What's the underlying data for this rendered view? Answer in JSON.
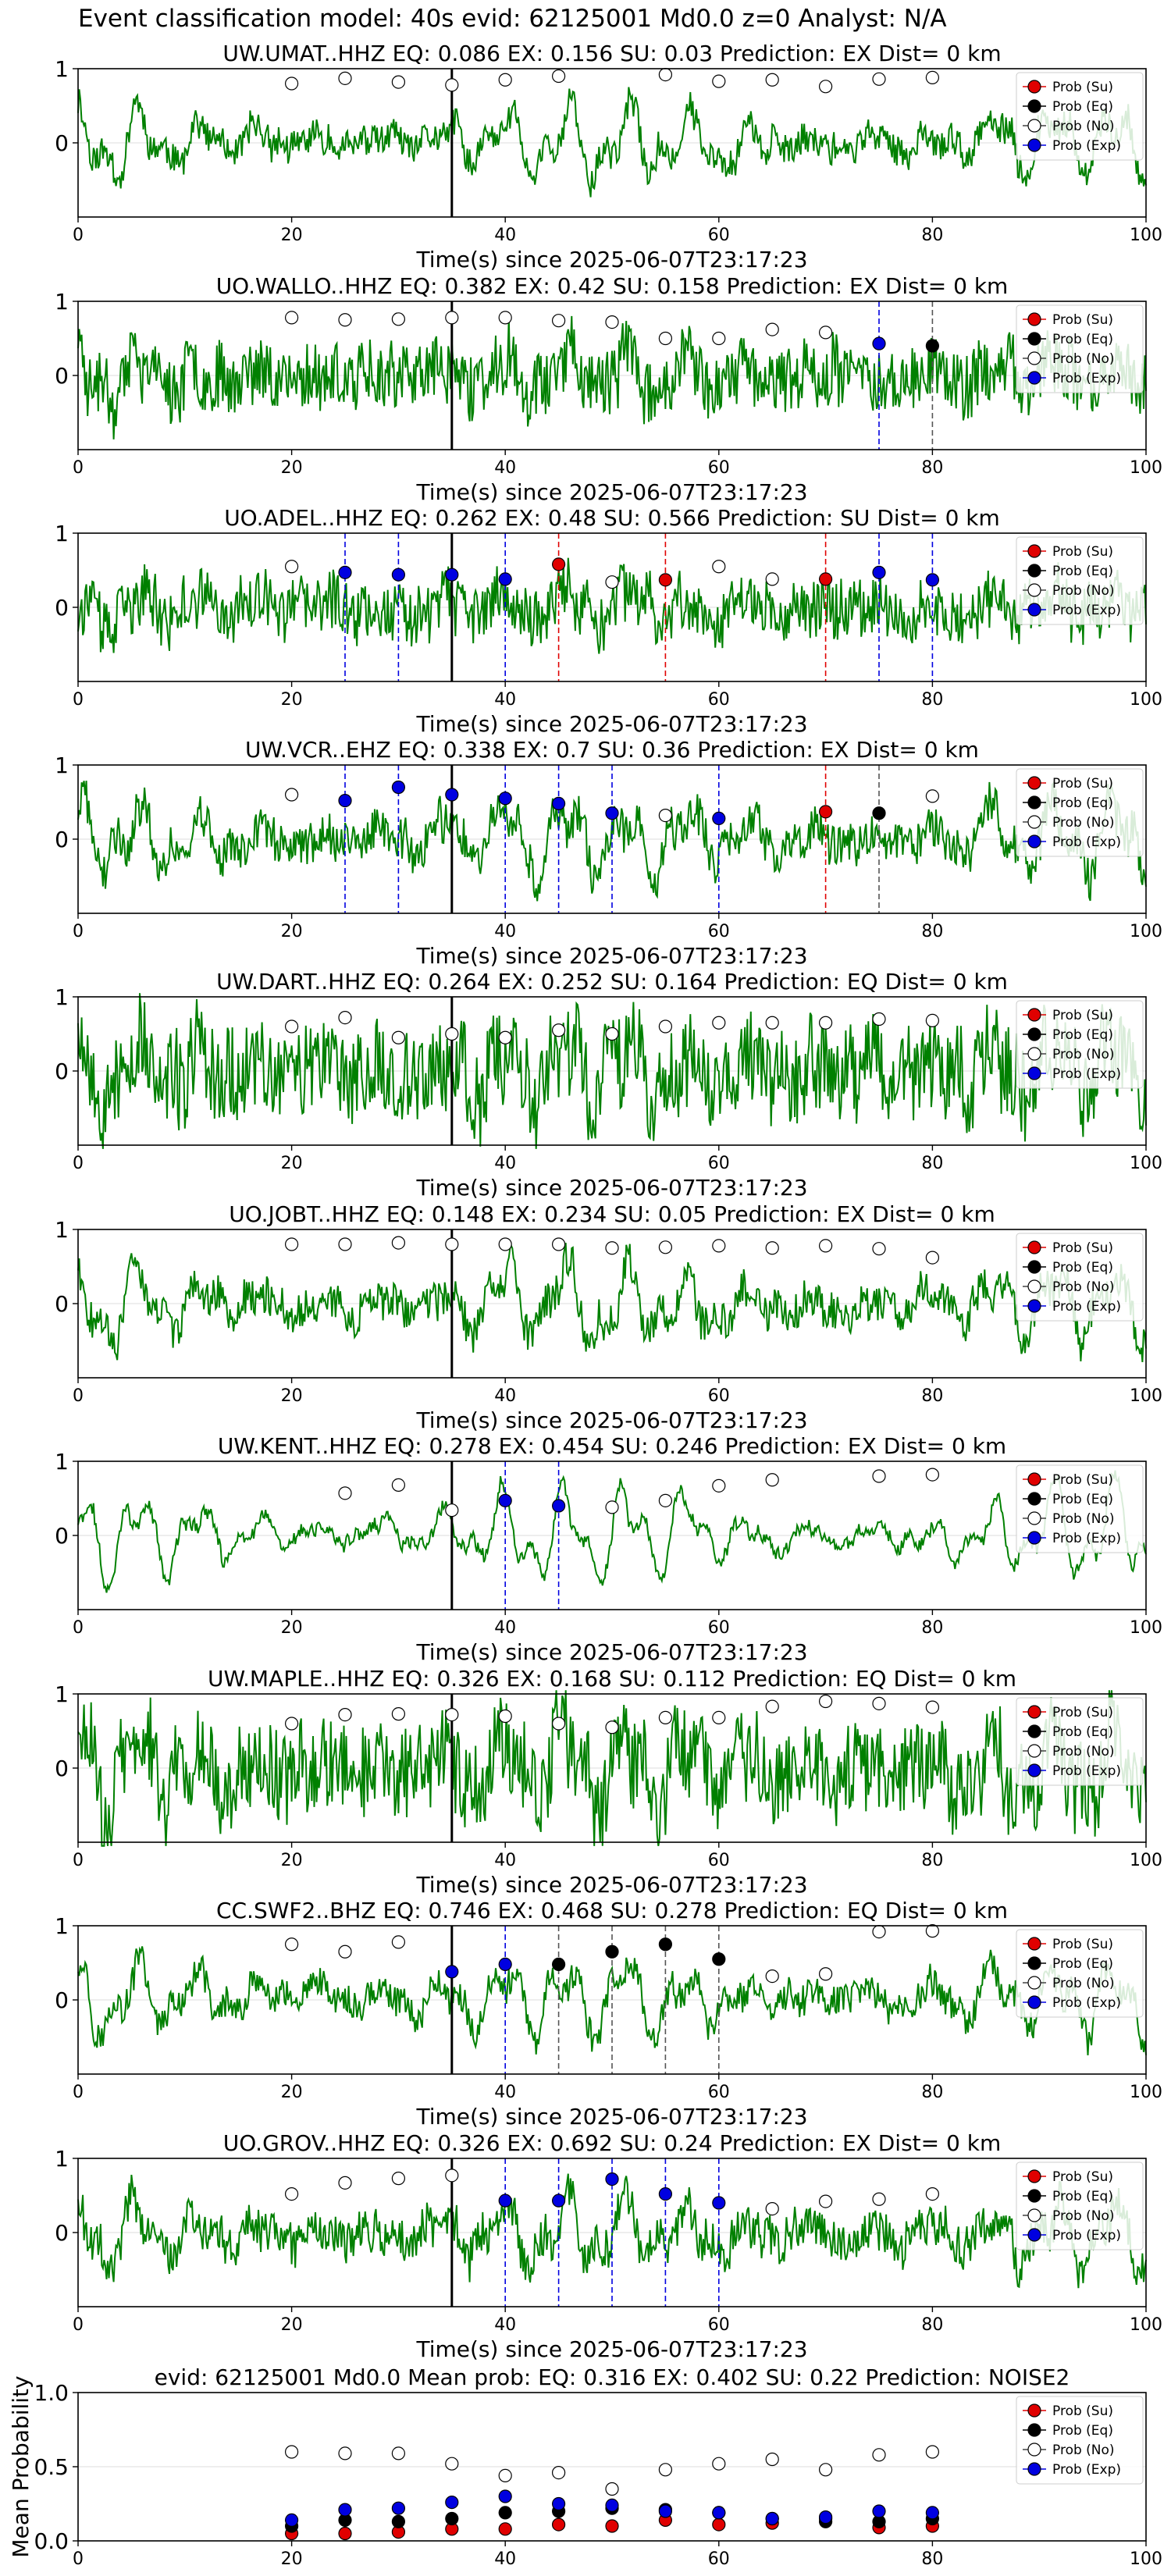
{
  "figure_title": "Event classification model: 40s evid: 62125001 Md0.0 z=0 Analyst: N/A",
  "colors": {
    "trace": "#008000",
    "su": "#e00000",
    "eq": "#000000",
    "no": "#ffffff",
    "exp": "#0000e0",
    "pick_line": "#000000"
  },
  "legend_labels": [
    "Prob (Su)",
    "Prob (Eq)",
    "Prob (No)",
    "Prob (Exp)"
  ],
  "chart_data": [
    {
      "type": "line",
      "trace_kind": "waveform",
      "title": "UW.UMAT..HHZ   EQ: 0.086  EX: 0.156  SU: 0.03   Prediction: EX    Dist= 0 km",
      "xlabel": "Time(s) since 2025-06-07T23:17:23",
      "xlim": [
        0,
        100
      ],
      "ylim": [
        -1,
        1
      ],
      "xticks": [
        0,
        20,
        40,
        60,
        80,
        100
      ],
      "yticks": [
        0,
        1
      ],
      "grid": true,
      "pick_time": 35,
      "legend_position": "upper right",
      "probability_markers": [
        {
          "time": 20,
          "no": 0.8
        },
        {
          "time": 25,
          "no": 0.87
        },
        {
          "time": 30,
          "no": 0.82
        },
        {
          "time": 35,
          "no": 0.78
        },
        {
          "time": 40,
          "no": 0.85
        },
        {
          "time": 45,
          "no": 0.9
        },
        {
          "time": 55,
          "no": 0.92
        },
        {
          "time": 60,
          "no": 0.83
        },
        {
          "time": 65,
          "no": 0.85
        },
        {
          "time": 70,
          "no": 0.76
        },
        {
          "time": 75,
          "no": 0.86
        },
        {
          "time": 80,
          "no": 0.88
        }
      ],
      "vertical_lines": []
    },
    {
      "type": "line",
      "trace_kind": "waveform",
      "title": "UO.WALLO..HHZ   EQ: 0.382  EX: 0.42  SU: 0.158   Prediction: EX    Dist= 0 km",
      "xlabel": "Time(s) since 2025-06-07T23:17:23",
      "xlim": [
        0,
        100
      ],
      "ylim": [
        -1,
        1
      ],
      "xticks": [
        0,
        20,
        40,
        60,
        80,
        100
      ],
      "yticks": [
        0,
        1
      ],
      "grid": true,
      "pick_time": 35,
      "legend_position": "upper right",
      "probability_markers": [
        {
          "time": 20,
          "no": 0.78
        },
        {
          "time": 25,
          "no": 0.75
        },
        {
          "time": 30,
          "no": 0.76
        },
        {
          "time": 35,
          "no": 0.78
        },
        {
          "time": 40,
          "no": 0.78
        },
        {
          "time": 45,
          "no": 0.74
        },
        {
          "time": 50,
          "no": 0.72
        },
        {
          "time": 55,
          "no": 0.5
        },
        {
          "time": 60,
          "no": 0.5
        },
        {
          "time": 65,
          "no": 0.62
        },
        {
          "time": 70,
          "no": 0.58
        },
        {
          "time": 75,
          "exp": 0.43
        },
        {
          "time": 80,
          "eq": 0.4
        }
      ],
      "vertical_lines": [
        {
          "time": 75,
          "class": "exp"
        },
        {
          "time": 80,
          "class": "eq"
        }
      ]
    },
    {
      "type": "line",
      "trace_kind": "waveform",
      "title": "UO.ADEL..HHZ   EQ: 0.262  EX: 0.48  SU: 0.566   Prediction: SU    Dist= 0 km",
      "xlabel": "Time(s) since 2025-06-07T23:17:23",
      "xlim": [
        0,
        100
      ],
      "ylim": [
        -1,
        1
      ],
      "xticks": [
        0,
        20,
        40,
        60,
        80,
        100
      ],
      "yticks": [
        0,
        1
      ],
      "grid": true,
      "pick_time": 35,
      "legend_position": "upper right",
      "probability_markers": [
        {
          "time": 20,
          "no": 0.55
        },
        {
          "time": 25,
          "exp": 0.47
        },
        {
          "time": 30,
          "exp": 0.44
        },
        {
          "time": 35,
          "exp": 0.44
        },
        {
          "time": 40,
          "exp": 0.38
        },
        {
          "time": 45,
          "su": 0.58
        },
        {
          "time": 50,
          "no": 0.34
        },
        {
          "time": 55,
          "su": 0.37
        },
        {
          "time": 60,
          "no": 0.55
        },
        {
          "time": 65,
          "no": 0.38
        },
        {
          "time": 70,
          "su": 0.38
        },
        {
          "time": 75,
          "exp": 0.47
        },
        {
          "time": 80,
          "exp": 0.37
        }
      ],
      "vertical_lines": [
        {
          "time": 25,
          "class": "exp"
        },
        {
          "time": 30,
          "class": "exp"
        },
        {
          "time": 40,
          "class": "exp"
        },
        {
          "time": 45,
          "class": "su"
        },
        {
          "time": 55,
          "class": "su"
        },
        {
          "time": 70,
          "class": "su"
        },
        {
          "time": 75,
          "class": "exp"
        },
        {
          "time": 80,
          "class": "exp"
        }
      ]
    },
    {
      "type": "line",
      "trace_kind": "waveform",
      "title": "UW.VCR..EHZ   EQ: 0.338  EX: 0.7  SU: 0.36   Prediction: EX    Dist= 0 km",
      "xlabel": "Time(s) since 2025-06-07T23:17:23",
      "xlim": [
        0,
        100
      ],
      "ylim": [
        -1,
        1
      ],
      "xticks": [
        0,
        20,
        40,
        60,
        80,
        100
      ],
      "yticks": [
        0,
        1
      ],
      "grid": true,
      "pick_time": 35,
      "legend_position": "upper right",
      "probability_markers": [
        {
          "time": 20,
          "no": 0.6
        },
        {
          "time": 25,
          "exp": 0.52
        },
        {
          "time": 30,
          "exp": 0.7
        },
        {
          "time": 35,
          "exp": 0.6
        },
        {
          "time": 40,
          "exp": 0.55
        },
        {
          "time": 45,
          "exp": 0.48
        },
        {
          "time": 50,
          "exp": 0.35
        },
        {
          "time": 55,
          "no": 0.32
        },
        {
          "time": 60,
          "exp": 0.28
        },
        {
          "time": 70,
          "su": 0.37
        },
        {
          "time": 75,
          "eq": 0.35
        },
        {
          "time": 80,
          "no": 0.58
        }
      ],
      "vertical_lines": [
        {
          "time": 25,
          "class": "exp"
        },
        {
          "time": 30,
          "class": "exp"
        },
        {
          "time": 40,
          "class": "exp"
        },
        {
          "time": 45,
          "class": "exp"
        },
        {
          "time": 50,
          "class": "exp"
        },
        {
          "time": 60,
          "class": "exp"
        },
        {
          "time": 70,
          "class": "su"
        },
        {
          "time": 75,
          "class": "eq"
        }
      ]
    },
    {
      "type": "line",
      "trace_kind": "waveform",
      "title": "UW.DART..HHZ   EQ: 0.264  EX: 0.252  SU: 0.164   Prediction: EQ    Dist= 0 km",
      "xlabel": "Time(s) since 2025-06-07T23:17:23",
      "xlim": [
        0,
        100
      ],
      "ylim": [
        -1,
        1
      ],
      "xticks": [
        0,
        20,
        40,
        60,
        80,
        100
      ],
      "yticks": [
        0,
        1
      ],
      "grid": true,
      "pick_time": 35,
      "legend_position": "upper right",
      "probability_markers": [
        {
          "time": 20,
          "no": 0.6
        },
        {
          "time": 25,
          "no": 0.72
        },
        {
          "time": 30,
          "no": 0.45
        },
        {
          "time": 35,
          "no": 0.5
        },
        {
          "time": 40,
          "no": 0.45
        },
        {
          "time": 45,
          "no": 0.55
        },
        {
          "time": 50,
          "no": 0.5
        },
        {
          "time": 55,
          "no": 0.6
        },
        {
          "time": 60,
          "no": 0.65
        },
        {
          "time": 65,
          "no": 0.65
        },
        {
          "time": 70,
          "no": 0.65
        },
        {
          "time": 75,
          "no": 0.7
        },
        {
          "time": 80,
          "no": 0.68
        }
      ],
      "vertical_lines": []
    },
    {
      "type": "line",
      "trace_kind": "waveform",
      "title": "UO.JOBT..HHZ   EQ: 0.148  EX: 0.234  SU: 0.05   Prediction: EX    Dist= 0 km",
      "xlabel": "Time(s) since 2025-06-07T23:17:23",
      "xlim": [
        0,
        100
      ],
      "ylim": [
        -1,
        1
      ],
      "xticks": [
        0,
        20,
        40,
        60,
        80,
        100
      ],
      "yticks": [
        0,
        1
      ],
      "grid": true,
      "pick_time": 35,
      "legend_position": "upper right",
      "probability_markers": [
        {
          "time": 20,
          "no": 0.8
        },
        {
          "time": 25,
          "no": 0.8
        },
        {
          "time": 30,
          "no": 0.82
        },
        {
          "time": 35,
          "no": 0.8
        },
        {
          "time": 40,
          "no": 0.8
        },
        {
          "time": 45,
          "no": 0.8
        },
        {
          "time": 50,
          "no": 0.75
        },
        {
          "time": 55,
          "no": 0.76
        },
        {
          "time": 60,
          "no": 0.78
        },
        {
          "time": 65,
          "no": 0.75
        },
        {
          "time": 70,
          "no": 0.78
        },
        {
          "time": 75,
          "no": 0.74
        },
        {
          "time": 80,
          "no": 0.62
        }
      ],
      "vertical_lines": []
    },
    {
      "type": "line",
      "trace_kind": "waveform",
      "title": "UW.KENT..HHZ   EQ: 0.278  EX: 0.454  SU: 0.246   Prediction: EX    Dist= 0 km",
      "xlabel": "Time(s) since 2025-06-07T23:17:23",
      "xlim": [
        0,
        100
      ],
      "ylim": [
        -1,
        1
      ],
      "xticks": [
        0,
        20,
        40,
        60,
        80,
        100
      ],
      "yticks": [
        0,
        1
      ],
      "grid": true,
      "pick_time": 35,
      "legend_position": "upper right",
      "probability_markers": [
        {
          "time": 25,
          "no": 0.57
        },
        {
          "time": 30,
          "no": 0.68
        },
        {
          "time": 35,
          "no": 0.34
        },
        {
          "time": 40,
          "exp": 0.47
        },
        {
          "time": 45,
          "exp": 0.4
        },
        {
          "time": 50,
          "no": 0.38
        },
        {
          "time": 55,
          "no": 0.47
        },
        {
          "time": 60,
          "no": 0.67
        },
        {
          "time": 65,
          "no": 0.75
        },
        {
          "time": 75,
          "no": 0.8
        },
        {
          "time": 80,
          "no": 0.82
        }
      ],
      "vertical_lines": [
        {
          "time": 40,
          "class": "exp"
        },
        {
          "time": 45,
          "class": "exp"
        }
      ]
    },
    {
      "type": "line",
      "trace_kind": "waveform",
      "title": "UW.MAPLE..HHZ   EQ: 0.326  EX: 0.168  SU: 0.112   Prediction: EQ    Dist= 0 km",
      "xlabel": "Time(s) since 2025-06-07T23:17:23",
      "xlim": [
        0,
        100
      ],
      "ylim": [
        -1,
        1
      ],
      "xticks": [
        0,
        20,
        40,
        60,
        80,
        100
      ],
      "yticks": [
        0,
        1
      ],
      "grid": true,
      "pick_time": 35,
      "legend_position": "upper right",
      "probability_markers": [
        {
          "time": 20,
          "no": 0.6
        },
        {
          "time": 25,
          "no": 0.72
        },
        {
          "time": 30,
          "no": 0.73
        },
        {
          "time": 35,
          "no": 0.72
        },
        {
          "time": 40,
          "no": 0.7
        },
        {
          "time": 45,
          "no": 0.6
        },
        {
          "time": 50,
          "no": 0.55
        },
        {
          "time": 55,
          "no": 0.68
        },
        {
          "time": 60,
          "no": 0.68
        },
        {
          "time": 65,
          "no": 0.83
        },
        {
          "time": 70,
          "no": 0.9
        },
        {
          "time": 75,
          "no": 0.87
        },
        {
          "time": 80,
          "no": 0.82
        }
      ],
      "vertical_lines": []
    },
    {
      "type": "line",
      "trace_kind": "waveform",
      "title": "CC.SWF2..BHZ   EQ: 0.746  EX: 0.468  SU: 0.278   Prediction: EQ    Dist= 0 km",
      "xlabel": "Time(s) since 2025-06-07T23:17:23",
      "xlim": [
        0,
        100
      ],
      "ylim": [
        -1,
        1
      ],
      "xticks": [
        0,
        20,
        40,
        60,
        80,
        100
      ],
      "yticks": [
        0,
        1
      ],
      "grid": true,
      "pick_time": 35,
      "legend_position": "upper right",
      "probability_markers": [
        {
          "time": 20,
          "no": 0.75
        },
        {
          "time": 25,
          "no": 0.65
        },
        {
          "time": 30,
          "no": 0.78
        },
        {
          "time": 35,
          "exp": 0.38
        },
        {
          "time": 40,
          "exp": 0.48
        },
        {
          "time": 45,
          "eq": 0.48
        },
        {
          "time": 50,
          "eq": 0.65
        },
        {
          "time": 55,
          "eq": 0.75
        },
        {
          "time": 60,
          "eq": 0.55
        },
        {
          "time": 65,
          "no": 0.32
        },
        {
          "time": 70,
          "no": 0.35
        },
        {
          "time": 75,
          "no": 0.92
        },
        {
          "time": 80,
          "no": 0.93
        }
      ],
      "vertical_lines": [
        {
          "time": 40,
          "class": "exp"
        },
        {
          "time": 45,
          "class": "eq"
        },
        {
          "time": 50,
          "class": "eq"
        },
        {
          "time": 55,
          "class": "eq"
        },
        {
          "time": 60,
          "class": "eq"
        }
      ]
    },
    {
      "type": "line",
      "trace_kind": "waveform",
      "title": "UO.GROV..HHZ   EQ: 0.326  EX: 0.692  SU: 0.24   Prediction: EX    Dist= 0 km",
      "xlabel": "Time(s) since 2025-06-07T23:17:23",
      "xlim": [
        0,
        100
      ],
      "ylim": [
        -1,
        1
      ],
      "xticks": [
        0,
        20,
        40,
        60,
        80,
        100
      ],
      "yticks": [
        0,
        1
      ],
      "grid": true,
      "pick_time": 35,
      "legend_position": "upper right",
      "probability_markers": [
        {
          "time": 20,
          "no": 0.52
        },
        {
          "time": 25,
          "no": 0.67
        },
        {
          "time": 30,
          "no": 0.73
        },
        {
          "time": 35,
          "no": 0.77
        },
        {
          "time": 40,
          "exp": 0.43
        },
        {
          "time": 45,
          "exp": 0.43
        },
        {
          "time": 50,
          "exp": 0.72
        },
        {
          "time": 55,
          "exp": 0.52
        },
        {
          "time": 60,
          "exp": 0.4
        },
        {
          "time": 65,
          "no": 0.32
        },
        {
          "time": 70,
          "no": 0.42
        },
        {
          "time": 75,
          "no": 0.45
        },
        {
          "time": 80,
          "no": 0.52
        }
      ],
      "vertical_lines": [
        {
          "time": 40,
          "class": "exp"
        },
        {
          "time": 45,
          "class": "exp"
        },
        {
          "time": 50,
          "class": "exp"
        },
        {
          "time": 55,
          "class": "exp"
        },
        {
          "time": 60,
          "class": "exp"
        }
      ]
    },
    {
      "type": "scatter",
      "trace_kind": "mean_probability",
      "title": "evid: 62125001   Md0.0   Mean prob:   EQ: 0.316  EX: 0.402  SU: 0.22   Prediction: NOISE2",
      "xlabel": "",
      "ylabel": "Mean Probability",
      "xlim": [
        0,
        100
      ],
      "ylim": [
        0,
        1
      ],
      "xticks": [
        0,
        20,
        40,
        60,
        80,
        100
      ],
      "yticks": [
        0.0,
        0.5,
        1.0
      ],
      "grid": true,
      "legend_position": "upper right",
      "x": [
        20,
        25,
        30,
        35,
        40,
        45,
        50,
        55,
        60,
        65,
        70,
        75,
        80
      ],
      "series": [
        {
          "name": "Prob (Su)",
          "key": "su",
          "values": [
            0.05,
            0.05,
            0.06,
            0.08,
            0.08,
            0.11,
            0.1,
            0.14,
            0.11,
            0.12,
            0.15,
            0.09,
            0.1
          ]
        },
        {
          "name": "Prob (Eq)",
          "key": "eq",
          "values": [
            0.1,
            0.14,
            0.13,
            0.15,
            0.19,
            0.2,
            0.22,
            0.21,
            0.19,
            0.15,
            0.13,
            0.13,
            0.15
          ]
        },
        {
          "name": "Prob (No)",
          "key": "no",
          "values": [
            0.6,
            0.59,
            0.59,
            0.52,
            0.44,
            0.46,
            0.35,
            0.48,
            0.52,
            0.55,
            0.48,
            0.58,
            0.6
          ]
        },
        {
          "name": "Prob (Exp)",
          "key": "exp",
          "values": [
            0.14,
            0.21,
            0.22,
            0.26,
            0.3,
            0.25,
            0.24,
            0.2,
            0.19,
            0.15,
            0.16,
            0.2,
            0.19
          ]
        }
      ]
    }
  ]
}
